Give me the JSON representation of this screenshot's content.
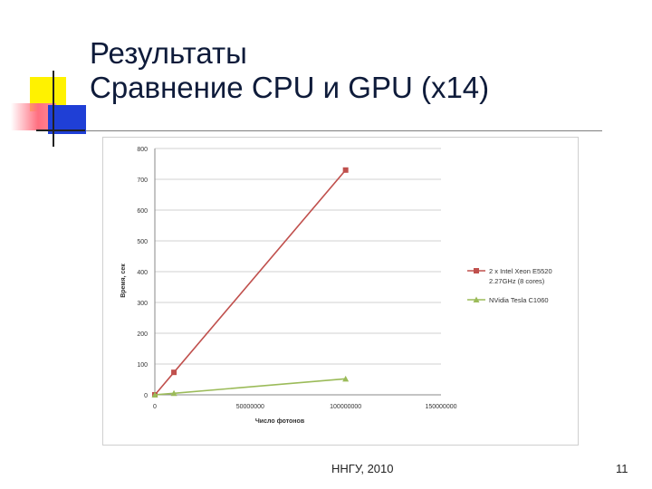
{
  "slide": {
    "title_line1": "Результаты",
    "title_line2": "Сравнение CPU и GPU (x14)",
    "footer_org": "ННГУ, 2010",
    "page_number": "11"
  },
  "colors": {
    "cpu": "#c0504d",
    "gpu": "#9bbb59",
    "grid": "#d0d0d0",
    "axis_text": "#333333"
  },
  "chart_data": {
    "type": "line",
    "xlabel": "Число фотонов",
    "ylabel": "Время, сек",
    "xlim": [
      0,
      150000000
    ],
    "ylim": [
      0,
      800
    ],
    "x_ticks": [
      0,
      50000000,
      100000000,
      150000000
    ],
    "x_tick_labels": [
      "0",
      "50000000",
      "100000000",
      "150000000"
    ],
    "y_ticks": [
      0,
      100,
      200,
      300,
      400,
      500,
      600,
      700,
      800
    ],
    "y_tick_labels": [
      "0",
      "100",
      "200",
      "300",
      "400",
      "500",
      "600",
      "700",
      "800"
    ],
    "grid": "horizontal",
    "legend_position": "right",
    "series": [
      {
        "name": "2 x Intel Xeon E5520 2.27GHz (8 cores)",
        "marker": "square",
        "color_key": "cpu",
        "x": [
          0,
          1000000,
          10000000,
          100000000
        ],
        "y": [
          0,
          7,
          73,
          730
        ]
      },
      {
        "name": "NVidia Tesla C1060",
        "marker": "triangle",
        "color_key": "gpu",
        "x": [
          0,
          1000000,
          10000000,
          100000000
        ],
        "y": [
          0,
          0.5,
          5,
          52
        ]
      }
    ]
  }
}
